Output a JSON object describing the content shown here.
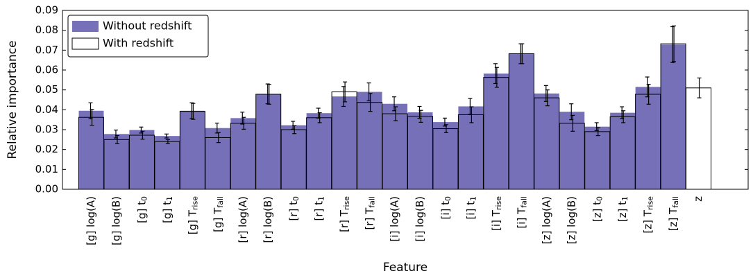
{
  "chart_data": {
    "type": "bar",
    "bar_mode": "overlap",
    "x_label": "Feature",
    "y_label": "Relative importance",
    "categories": [
      "[g] log(A)",
      "[g] log(B)",
      {
        "text": "[g] t",
        "sub": "0"
      },
      {
        "text": "[g] t",
        "sub": "1"
      },
      {
        "text": "[g] T",
        "sub": "rise"
      },
      {
        "text": "[g] T",
        "sub": "fall"
      },
      "[r] log(A)",
      "[r] log(B)",
      {
        "text": "[r] t",
        "sub": "0"
      },
      {
        "text": "[r] t",
        "sub": "1"
      },
      {
        "text": "[r] T",
        "sub": "rise"
      },
      {
        "text": "[r] T",
        "sub": "fall"
      },
      "[i] log(A)",
      "[i] log(B)",
      {
        "text": "[i] t",
        "sub": "0"
      },
      {
        "text": "[i] t",
        "sub": "1"
      },
      {
        "text": "[i] T",
        "sub": "rise"
      },
      {
        "text": "[i] T",
        "sub": "fall"
      },
      "[z] log(A)",
      "[z] log(B)",
      {
        "text": "[z] t",
        "sub": "0"
      },
      {
        "text": "[z] t",
        "sub": "1"
      },
      {
        "text": "[z] T",
        "sub": "rise"
      },
      {
        "text": "[z] T",
        "sub": "fall"
      },
      "z"
    ],
    "series": [
      {
        "name": "Without redshift",
        "color": "#7570b8",
        "fill": true,
        "values": [
          0.0395,
          0.0278,
          0.0298,
          0.0268,
          0.0395,
          0.0308,
          0.0358,
          0.048,
          0.0322,
          0.0383,
          0.0467,
          0.049,
          0.043,
          0.0387,
          0.0338,
          0.0417,
          0.0582,
          0.0682,
          0.0482,
          0.039,
          0.0315,
          0.0385,
          0.0515,
          0.0728,
          null
        ],
        "errors": [
          0.004,
          0.002,
          0.0015,
          0.001,
          0.004,
          0.0025,
          0.003,
          0.005,
          0.002,
          0.0025,
          0.005,
          0.0045,
          0.0035,
          0.003,
          0.002,
          0.004,
          0.005,
          0.005,
          0.004,
          0.004,
          0.002,
          0.003,
          0.005,
          0.009,
          null
        ]
      },
      {
        "name": "With redshift",
        "color": "#000000",
        "fill": false,
        "values": [
          0.0362,
          0.025,
          0.0272,
          0.024,
          0.0392,
          0.026,
          0.0332,
          0.0478,
          0.03,
          0.036,
          0.049,
          0.0437,
          0.038,
          0.0367,
          0.0305,
          0.0375,
          0.0563,
          0.0682,
          0.046,
          0.0332,
          0.029,
          0.0365,
          0.0478,
          0.0732,
          0.051
        ],
        "errors": [
          0.004,
          0.002,
          0.002,
          0.001,
          0.004,
          0.0025,
          0.003,
          0.005,
          0.002,
          0.0025,
          0.005,
          0.0045,
          0.0035,
          0.003,
          0.002,
          0.004,
          0.005,
          0.005,
          0.004,
          0.004,
          0.002,
          0.003,
          0.005,
          0.009,
          0.005
        ]
      }
    ],
    "ylim": [
      0,
      0.09
    ],
    "yticks": [
      {
        "value": 0,
        "label": "0.00"
      },
      {
        "value": 0.01,
        "label": "0.01"
      },
      {
        "value": 0.02,
        "label": "0.02"
      },
      {
        "value": 0.03,
        "label": "0.03"
      },
      {
        "value": 0.04,
        "label": "0.04"
      },
      {
        "value": 0.05,
        "label": "0.05"
      },
      {
        "value": 0.06,
        "label": "0.06"
      },
      {
        "value": 0.07,
        "label": "0.07"
      },
      {
        "value": 0.08,
        "label": "0.08"
      },
      {
        "value": 0.09,
        "label": "0.09"
      }
    ],
    "legend": "upper left",
    "grid": false
  }
}
